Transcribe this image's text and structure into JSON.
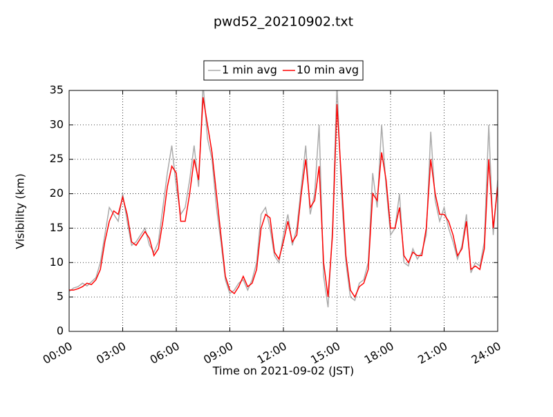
{
  "chart_data": {
    "type": "line",
    "title": "pwd52_20210902.txt",
    "x_label": "Time on 2021-09-02 (JST)",
    "y_label": "Visibility (km)",
    "x": [
      0,
      0.25,
      0.5,
      0.75,
      1,
      1.25,
      1.5,
      1.75,
      2,
      2.25,
      2.5,
      2.75,
      3,
      3.25,
      3.5,
      3.75,
      4,
      4.25,
      4.5,
      4.75,
      5,
      5.25,
      5.5,
      5.75,
      6,
      6.25,
      6.5,
      6.75,
      7,
      7.25,
      7.5,
      7.75,
      8,
      8.25,
      8.5,
      8.75,
      9,
      9.25,
      9.5,
      9.75,
      10,
      10.25,
      10.5,
      10.75,
      11,
      11.25,
      11.5,
      11.75,
      12,
      12.25,
      12.5,
      12.75,
      13,
      13.25,
      13.5,
      13.75,
      14,
      14.25,
      14.5,
      14.75,
      15,
      15.25,
      15.5,
      15.75,
      16,
      16.25,
      16.5,
      16.75,
      17,
      17.25,
      17.5,
      17.75,
      18,
      18.25,
      18.5,
      18.75,
      19,
      19.25,
      19.5,
      19.75,
      20,
      20.25,
      20.5,
      20.75,
      21,
      21.25,
      21.5,
      21.75,
      22,
      22.25,
      22.5,
      22.75,
      23,
      23.25,
      23.5,
      23.75,
      24
    ],
    "series": [
      {
        "name": "1 min avg",
        "color": "#aaaaaa",
        "values": [
          5.8,
          6.3,
          6.5,
          7,
          6.6,
          7.2,
          7.8,
          10,
          14,
          18,
          17,
          16,
          20,
          16,
          12.5,
          13,
          14,
          15,
          12.5,
          11.5,
          13,
          18,
          23,
          27,
          21,
          17,
          18,
          22,
          27,
          21,
          36,
          28,
          25,
          18,
          13,
          7.5,
          5.5,
          6,
          7,
          7.5,
          6,
          7.5,
          10,
          17,
          18,
          15,
          11,
          10,
          14,
          17,
          12.5,
          15,
          21,
          27,
          17,
          20,
          30,
          8,
          3.5,
          15,
          36,
          20,
          10,
          5,
          4.5,
          7,
          7.5,
          10,
          23,
          18,
          30,
          21,
          14,
          15,
          20,
          10,
          9.5,
          12,
          10.5,
          11.5,
          14,
          29,
          19,
          16,
          18,
          15,
          13,
          10.5,
          12.5,
          17,
          8.5,
          10,
          9.5,
          13,
          30,
          14,
          22
        ]
      },
      {
        "name": "10 min avg",
        "color": "#ff0000",
        "values": [
          6,
          6,
          6.2,
          6.5,
          7,
          6.8,
          7.5,
          9,
          13,
          16,
          17.5,
          17,
          19.5,
          17,
          13,
          12.5,
          13.5,
          14.5,
          13.5,
          11,
          12,
          16,
          21,
          24,
          23,
          16,
          16,
          20,
          25,
          22,
          34,
          30,
          26,
          20,
          14,
          8,
          6,
          5.5,
          6.5,
          8,
          6.5,
          7,
          9,
          15,
          17,
          16.5,
          11.5,
          10.5,
          13,
          16,
          13,
          14,
          20,
          25,
          18,
          19,
          24,
          10,
          5,
          14,
          33,
          22,
          11,
          6,
          5,
          6.5,
          7,
          9,
          20,
          19,
          26,
          22,
          15,
          15,
          18,
          11,
          10,
          11.5,
          11,
          11,
          15,
          25,
          20,
          17,
          17,
          16,
          14,
          11,
          12,
          16,
          9,
          9.5,
          9,
          12,
          25,
          15,
          21
        ]
      }
    ],
    "xlim": [
      0,
      24
    ],
    "xticks": [
      {
        "value": 0,
        "label": "00:00"
      },
      {
        "value": 3,
        "label": "03:00"
      },
      {
        "value": 6,
        "label": "06:00"
      },
      {
        "value": 9,
        "label": "09:00"
      },
      {
        "value": 12,
        "label": "12:00"
      },
      {
        "value": 15,
        "label": "15:00"
      },
      {
        "value": 18,
        "label": "18:00"
      },
      {
        "value": 21,
        "label": "21:00"
      },
      {
        "value": 24,
        "label": "24:00"
      }
    ],
    "ylim": [
      0,
      35
    ],
    "yticks": [
      0,
      5,
      10,
      15,
      20,
      25,
      30,
      35
    ],
    "grid": true,
    "legend": "upper center"
  }
}
